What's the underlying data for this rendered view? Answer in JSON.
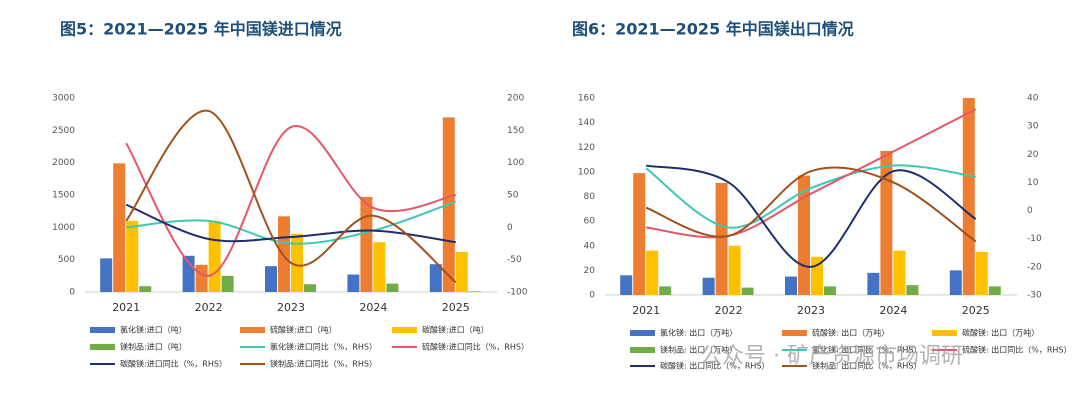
{
  "chart_data": [
    {
      "type": "bar",
      "title": "图5：2021—2025 年中国镁进口情况",
      "categories": [
        "2021",
        "2022",
        "2023",
        "2024",
        "2025"
      ],
      "ylim": [
        0,
        3000
      ],
      "yticks": [
        0,
        500,
        1000,
        1500,
        2000,
        2500,
        3000
      ],
      "y2lim": [
        -100,
        200
      ],
      "y2ticks": [
        -100,
        -50,
        0,
        50,
        100,
        150,
        200
      ],
      "series": [
        {
          "name": "氯化镁:进口（吨）",
          "color": "#4472c4",
          "values": [
            520,
            560,
            400,
            270,
            430
          ]
        },
        {
          "name": "硫酸镁:进口（吨）",
          "color": "#ed7d31",
          "values": [
            1990,
            420,
            1170,
            1470,
            2700
          ]
        },
        {
          "name": "碳酸镁:进口（吨）",
          "color": "#ffc000",
          "values": [
            1100,
            1100,
            900,
            770,
            620
          ]
        },
        {
          "name": "镁制品:进口（吨）",
          "color": "#70ad47",
          "values": [
            90,
            250,
            120,
            130,
            10
          ]
        },
        {
          "name": "氯化镁:进口同比（%，RHS）",
          "color": "#3ec8b4",
          "type": "line",
          "axis": "y2",
          "values": [
            0,
            10,
            -25,
            -5,
            40
          ]
        },
        {
          "name": "硫酸镁:进口同比（%，RHS）",
          "color": "#e8566b",
          "type": "line",
          "axis": "y2",
          "values": [
            130,
            -75,
            155,
            30,
            50
          ]
        },
        {
          "name": "碳酸镁:进口同比（%，RHS）",
          "color": "#1f2f6b",
          "type": "line",
          "axis": "y2",
          "values": [
            35,
            -18,
            -15,
            -5,
            -23
          ]
        },
        {
          "name": "镁制品:进口同比（%，RHS）",
          "color": "#a0521e",
          "type": "line",
          "axis": "y2",
          "values": [
            10,
            180,
            -55,
            18,
            -85
          ]
        }
      ]
    },
    {
      "type": "bar",
      "title": "图6：2021—2025 年中国镁出口情况",
      "categories": [
        "2021",
        "2022",
        "2023",
        "2024",
        "2025"
      ],
      "ylim": [
        0,
        160
      ],
      "yticks": [
        0,
        20,
        40,
        60,
        80,
        100,
        120,
        140,
        160
      ],
      "y2lim": [
        -30,
        40
      ],
      "y2ticks": [
        -30,
        -20,
        -10,
        0,
        10,
        20,
        30,
        40
      ],
      "series": [
        {
          "name": "氯化镁: 出口（万吨）",
          "color": "#4472c4",
          "values": [
            16,
            14,
            15,
            18,
            20
          ]
        },
        {
          "name": "硫酸镁: 出口（万吨）",
          "color": "#ed7d31",
          "values": [
            99,
            91,
            97,
            117,
            160
          ]
        },
        {
          "name": "碳酸镁: 出口（万吨）",
          "color": "#ffc000",
          "values": [
            36,
            40,
            31,
            36,
            35
          ]
        },
        {
          "name": "镁制品: 出口（万吨）",
          "color": "#70ad47",
          "values": [
            7,
            6,
            7,
            8,
            7
          ]
        },
        {
          "name": "氯化镁: 出口同比（%，RHS）",
          "color": "#3ec8b4",
          "type": "line",
          "axis": "y2",
          "values": [
            15,
            -6,
            8,
            16,
            12
          ]
        },
        {
          "name": "硫酸镁: 出口同比（%，RHS）",
          "color": "#e8566b",
          "type": "line",
          "axis": "y2",
          "values": [
            -6,
            -9,
            6,
            21,
            36
          ]
        },
        {
          "name": "碳酸镁: 出口同比（%，RHS）",
          "color": "#1f2f6b",
          "type": "line",
          "axis": "y2",
          "values": [
            16,
            10,
            -20,
            14,
            -3
          ]
        },
        {
          "name": "镁制品: 出口同比（%，RHS）",
          "color": "#a0521e",
          "type": "line",
          "axis": "y2",
          "values": [
            1,
            -9,
            14,
            10,
            -11
          ]
        }
      ]
    }
  ],
  "watermark": "公众号 · 矿产资源市场调研"
}
